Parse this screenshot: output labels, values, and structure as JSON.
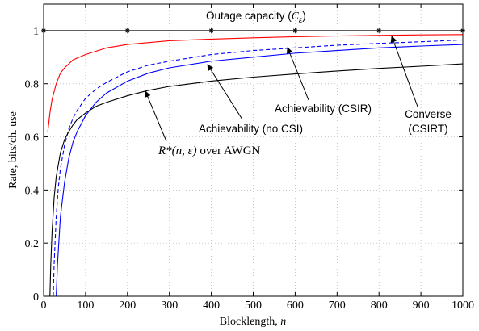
{
  "chart_data": {
    "type": "line",
    "xlabel": "Blocklength,",
    "xlabel_var": "n",
    "ylabel": "Rate, bits/ch. use",
    "xlim": [
      0,
      1000
    ],
    "ylim": [
      0,
      1.1
    ],
    "x_ticks": [
      0,
      100,
      200,
      300,
      400,
      500,
      600,
      700,
      800,
      900,
      1000
    ],
    "y_ticks": [
      0,
      0.2,
      0.4,
      0.6,
      0.8,
      1
    ],
    "grid": true,
    "series": [
      {
        "name": "Outage capacity",
        "color": "#000000",
        "dash": "solid",
        "marker": "asterisk",
        "x": [
          0,
          200,
          400,
          600,
          800,
          1000
        ],
        "y": [
          1.0,
          1.0,
          1.0,
          1.0,
          1.0,
          1.0
        ]
      },
      {
        "name": "Converse (CSIRT)",
        "color": "#ff0000",
        "dash": "solid",
        "x": [
          10,
          15,
          20,
          30,
          40,
          50,
          70,
          100,
          150,
          200,
          300,
          400,
          500,
          600,
          700,
          800,
          900,
          1000
        ],
        "y": [
          0.62,
          0.69,
          0.74,
          0.8,
          0.84,
          0.86,
          0.89,
          0.91,
          0.935,
          0.948,
          0.962,
          0.968,
          0.973,
          0.977,
          0.98,
          0.982,
          0.984,
          0.985
        ]
      },
      {
        "name": "Achievability (CSIR)",
        "color": "#0000ff",
        "dash": "dashed",
        "x": [
          23,
          25,
          30,
          35,
          40,
          50,
          60,
          70,
          80,
          100,
          125,
          150,
          200,
          250,
          300,
          400,
          500,
          600,
          700,
          800,
          900,
          1000
        ],
        "y": [
          0.0,
          0.12,
          0.3,
          0.41,
          0.48,
          0.57,
          0.63,
          0.67,
          0.7,
          0.745,
          0.78,
          0.805,
          0.845,
          0.87,
          0.885,
          0.91,
          0.925,
          0.935,
          0.945,
          0.952,
          0.958,
          0.965
        ]
      },
      {
        "name": "Achievability (no CSI)",
        "color": "#0000ff",
        "dash": "solid",
        "x": [
          30,
          33,
          40,
          50,
          60,
          70,
          80,
          100,
          125,
          150,
          200,
          250,
          300,
          400,
          500,
          600,
          700,
          800,
          900,
          1000
        ],
        "y": [
          0.0,
          0.12,
          0.3,
          0.43,
          0.52,
          0.58,
          0.62,
          0.68,
          0.73,
          0.765,
          0.81,
          0.84,
          0.86,
          0.885,
          0.9,
          0.915,
          0.925,
          0.935,
          0.942,
          0.948
        ]
      },
      {
        "name": "R*(n, ε) over AWGN",
        "color": "#000000",
        "dash": "solid",
        "x": [
          15,
          17,
          20,
          25,
          30,
          40,
          50,
          60,
          70,
          80,
          100,
          125,
          150,
          200,
          250,
          300,
          400,
          500,
          600,
          700,
          800,
          900,
          1000
        ],
        "y": [
          0.0,
          0.12,
          0.24,
          0.37,
          0.45,
          0.54,
          0.59,
          0.62,
          0.645,
          0.665,
          0.69,
          0.715,
          0.73,
          0.755,
          0.775,
          0.79,
          0.81,
          0.825,
          0.837,
          0.848,
          0.858,
          0.866,
          0.875
        ]
      }
    ],
    "annotations": [
      {
        "id": "outage",
        "text": "Outage capacity (",
        "math": "C",
        "sub": "ε",
        "close": ")",
        "arrow": false
      },
      {
        "id": "converse",
        "line1": "Converse",
        "line2": "(CSIRT)",
        "target": [
          820,
          0.985
        ]
      },
      {
        "id": "csir",
        "text": "Achievability (CSIR)",
        "target": [
          525,
          0.935
        ]
      },
      {
        "id": "nocsi",
        "text": "Achievability (no CSI)",
        "target": [
          390,
          0.885
        ]
      },
      {
        "id": "awgn",
        "math": "R*(n, ε)",
        "text": " over AWGN",
        "target": [
          240,
          0.77
        ]
      }
    ]
  }
}
